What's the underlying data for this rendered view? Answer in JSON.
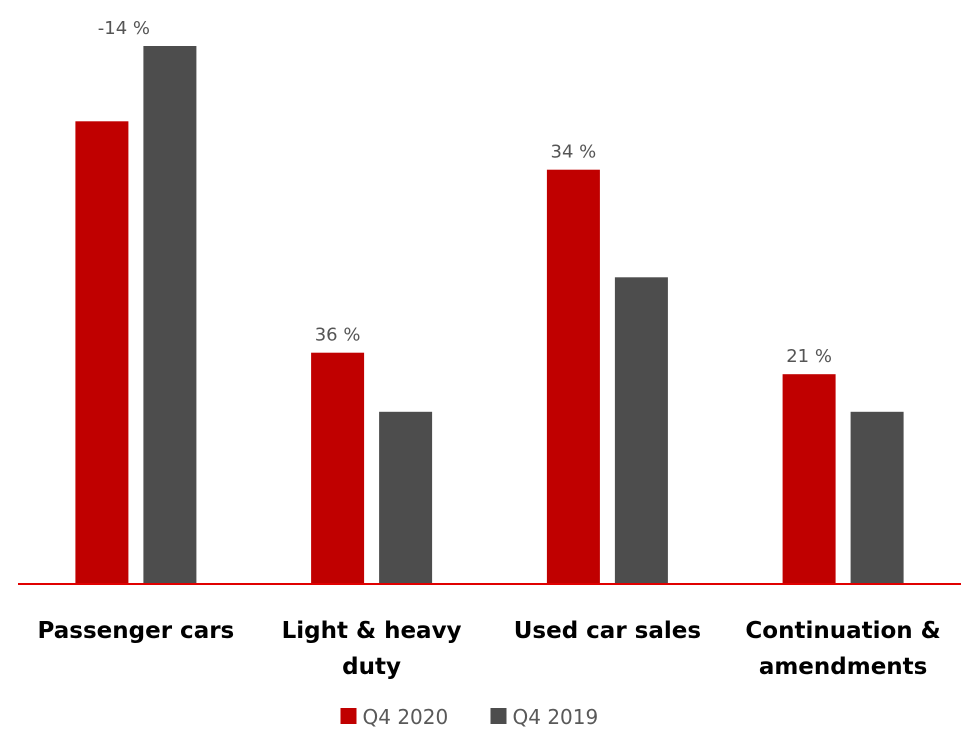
{
  "chart_data": {
    "type": "bar",
    "categories": [
      [
        "Passenger cars"
      ],
      [
        "Light & heavy",
        "duty"
      ],
      [
        "Used car sales"
      ],
      [
        "Continuation &",
        "amendments"
      ]
    ],
    "series": [
      {
        "name": "Q4 2020",
        "color": "#C00000",
        "values": [
          86,
          43,
          77,
          39
        ]
      },
      {
        "name": "Q4 2019",
        "color": "#4D4D4D",
        "values": [
          100,
          32,
          57,
          32
        ]
      }
    ],
    "data_labels": [
      "-14 %",
      "36 %",
      "34 %",
      "21 %"
    ],
    "ylim": [
      0,
      100
    ],
    "axis_color": "#E00000",
    "legend_position": "bottom",
    "grid": false
  }
}
